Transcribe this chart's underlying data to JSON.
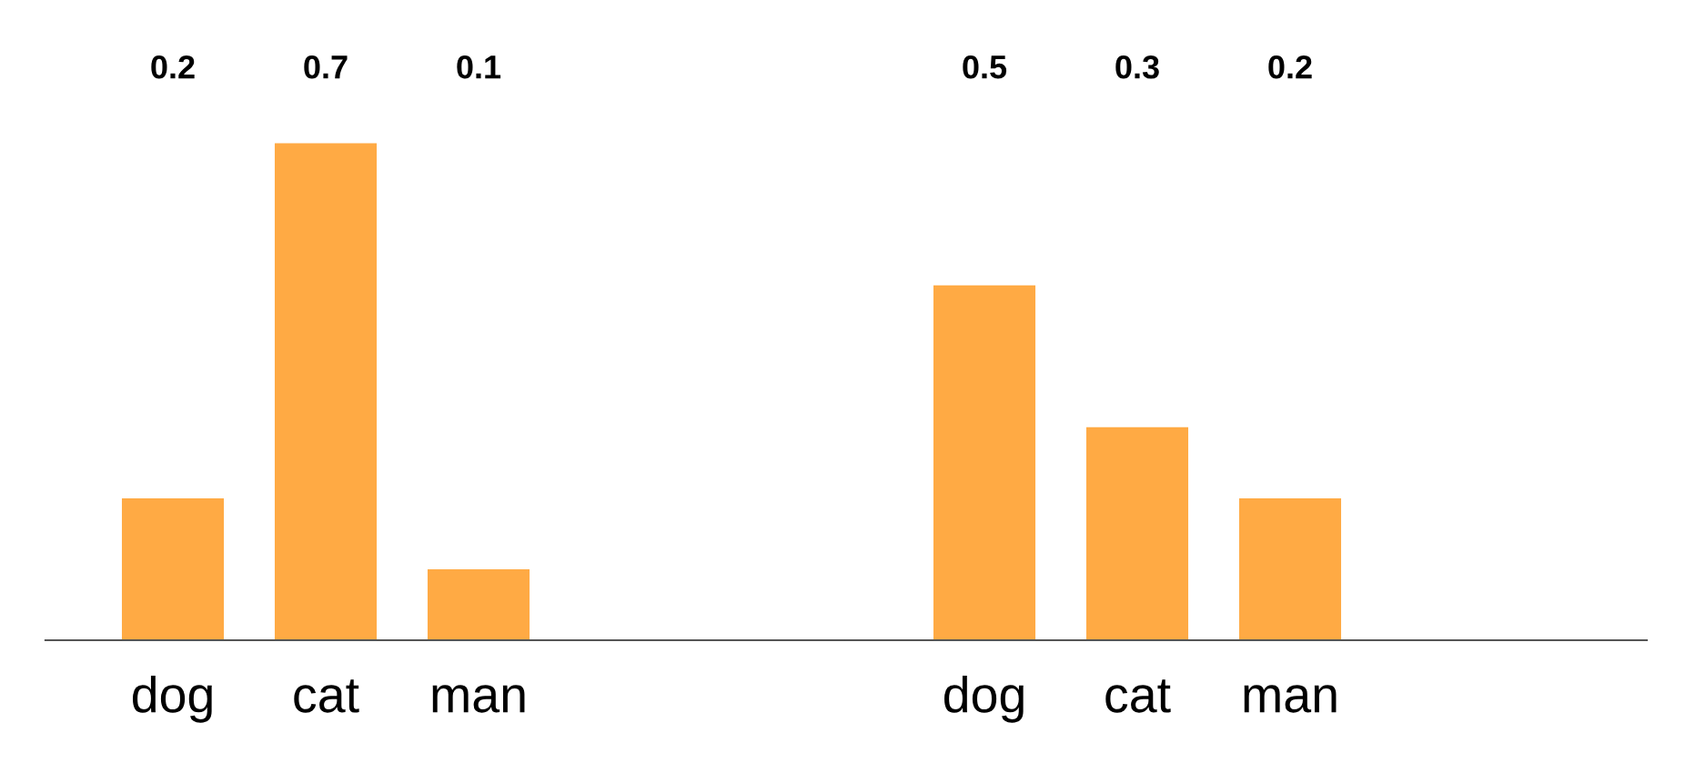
{
  "chart_data": [
    {
      "type": "bar",
      "categories": [
        "dog",
        "cat",
        "man"
      ],
      "values": [
        0.2,
        0.7,
        0.1
      ],
      "color": "#ffaa44",
      "data_labels": true,
      "tick_labels": "x"
    },
    {
      "type": "bar",
      "categories": [
        "dog",
        "cat",
        "man"
      ],
      "values": [
        0.5,
        0.3,
        0.2
      ],
      "color": "#ffaa44",
      "data_labels": true,
      "tick_labels": "x"
    }
  ]
}
